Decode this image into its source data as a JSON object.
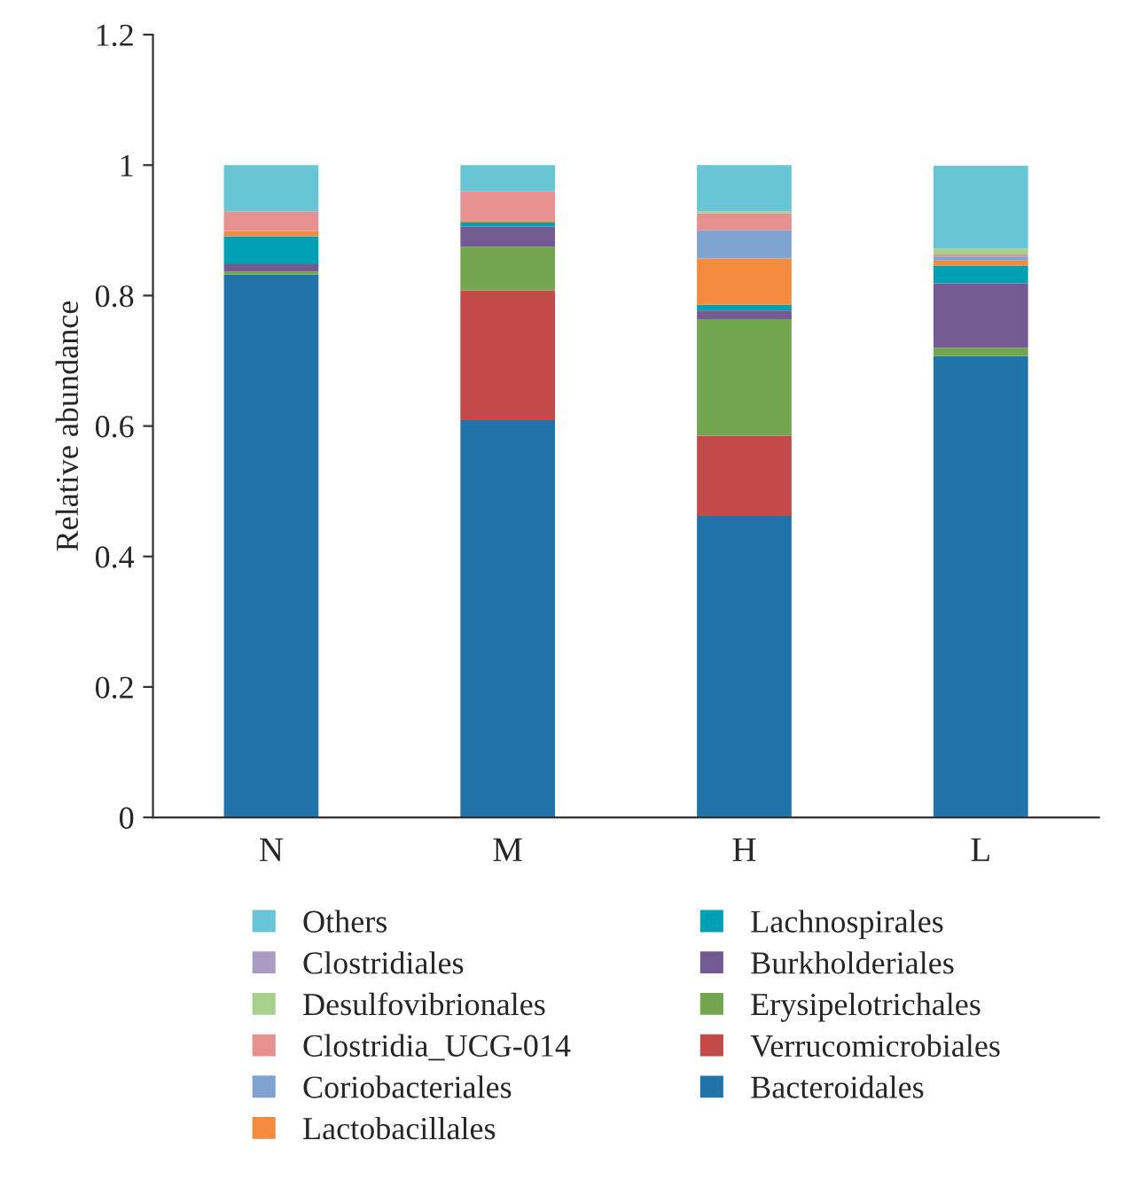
{
  "chart_data": {
    "type": "bar",
    "stacked": true,
    "ylabel": "Relative abundance",
    "categories": [
      "N",
      "M",
      "H",
      "L"
    ],
    "series": [
      {
        "name": "Bacteroidales",
        "color": "#2174aa",
        "values": [
          0.832,
          0.609,
          0.462,
          0.707
        ]
      },
      {
        "name": "Verrucomicrobiales",
        "color": "#c24b4a",
        "values": [
          0,
          0.199,
          0.123,
          0
        ]
      },
      {
        "name": "Erysipelotrichales",
        "color": "#74a64f",
        "values": [
          0.005,
          0.067,
          0.179,
          0.013
        ]
      },
      {
        "name": "Burkholderiales",
        "color": "#735a93",
        "values": [
          0.011,
          0.031,
          0.013,
          0.099
        ]
      },
      {
        "name": "Lachnospirales",
        "color": "#00a0b4",
        "values": [
          0.043,
          0.006,
          0.009,
          0.027
        ]
      },
      {
        "name": "Lactobacillales",
        "color": "#f48b3e",
        "values": [
          0.008,
          0.003,
          0.071,
          0.008
        ]
      },
      {
        "name": "Coriobacteriales",
        "color": "#7fa4cf",
        "values": [
          0,
          0,
          0.043,
          0.006
        ]
      },
      {
        "name": "Clostridia_UCG-014",
        "color": "#e6908f",
        "values": [
          0.03,
          0.045,
          0.026,
          0.003
        ]
      },
      {
        "name": "Desulfovibrionales",
        "color": "#a8d08d",
        "values": [
          0,
          0,
          0.003,
          0.009
        ]
      },
      {
        "name": "Clostridiales",
        "color": "#a99bc4",
        "values": [
          0,
          0,
          0,
          0
        ]
      },
      {
        "name": "Others",
        "color": "#67c5d6",
        "values": [
          0.071,
          0.04,
          0.071,
          0.127
        ]
      }
    ],
    "ylim": [
      0,
      1.2
    ],
    "yticks": [
      0,
      0.2,
      0.4,
      0.6,
      0.8,
      {
        "value": 1,
        "label": "1"
      },
      1.2
    ],
    "grid": false,
    "legend": "bottom"
  }
}
